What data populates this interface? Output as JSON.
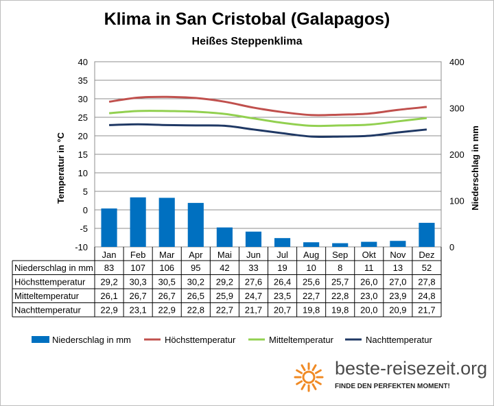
{
  "chart_data": {
    "type": "bar",
    "title": "Klima in San Cristobal (Galapagos)",
    "subtitle": "Heißes Steppenklima",
    "ylabel": "Temperatur in °C",
    "y2label": "Niederschlag in mm",
    "ylim": [
      -10,
      40
    ],
    "yticks": [
      40,
      35,
      30,
      25,
      20,
      15,
      10,
      5,
      0,
      -5,
      -10
    ],
    "y2lim": [
      0,
      400
    ],
    "y2ticks": [
      400,
      300,
      200,
      100,
      0
    ],
    "categories": [
      "Jan",
      "Feb",
      "Mar",
      "Apr",
      "Mai",
      "Jun",
      "Jul",
      "Aug",
      "Sep",
      "Okt",
      "Nov",
      "Dez"
    ],
    "grid": true,
    "legend_position": "bottom",
    "series": [
      {
        "name": "Niederschlag in mm",
        "kind": "bar",
        "axis": "right",
        "color": "#0070c0",
        "values": [
          83,
          107,
          106,
          95,
          42,
          33,
          19,
          10,
          8,
          11,
          13,
          52
        ],
        "display": [
          "83",
          "107",
          "106",
          "95",
          "42",
          "33",
          "19",
          "10",
          "8",
          "11",
          "13",
          "52"
        ]
      },
      {
        "name": "Höchsttemperatur",
        "kind": "line",
        "axis": "left",
        "color": "#c0504d",
        "values": [
          29.2,
          30.3,
          30.5,
          30.2,
          29.2,
          27.6,
          26.4,
          25.6,
          25.7,
          26.0,
          27.0,
          27.8
        ],
        "display": [
          "29,2",
          "30,3",
          "30,5",
          "30,2",
          "29,2",
          "27,6",
          "26,4",
          "25,6",
          "25,7",
          "26,0",
          "27,0",
          "27,8"
        ]
      },
      {
        "name": "Mitteltemperatur",
        "kind": "line",
        "axis": "left",
        "color": "#92d050",
        "values": [
          26.1,
          26.7,
          26.7,
          26.5,
          25.9,
          24.7,
          23.5,
          22.7,
          22.8,
          23.0,
          23.9,
          24.8
        ],
        "display": [
          "26,1",
          "26,7",
          "26,7",
          "26,5",
          "25,9",
          "24,7",
          "23,5",
          "22,7",
          "22,8",
          "23,0",
          "23,9",
          "24,8"
        ]
      },
      {
        "name": "Nachttemperatur",
        "kind": "line",
        "axis": "left",
        "color": "#1f3864",
        "values": [
          22.9,
          23.1,
          22.9,
          22.8,
          22.7,
          21.7,
          20.7,
          19.8,
          19.8,
          20.0,
          20.9,
          21.7
        ],
        "display": [
          "22,9",
          "23,1",
          "22,9",
          "22,8",
          "22,7",
          "21,7",
          "20,7",
          "19,8",
          "19,8",
          "20,0",
          "20,9",
          "21,7"
        ]
      }
    ],
    "table_rows": [
      "Niederschlag in mm",
      "Höchsttemperatur",
      "Mitteltemperatur",
      "Nachttemperatur"
    ]
  },
  "logo": {
    "text": "beste-reisezeit.org",
    "tagline": "FINDE DEN PERFEKTEN MOMENT!",
    "sun_color": "#f08a24"
  }
}
